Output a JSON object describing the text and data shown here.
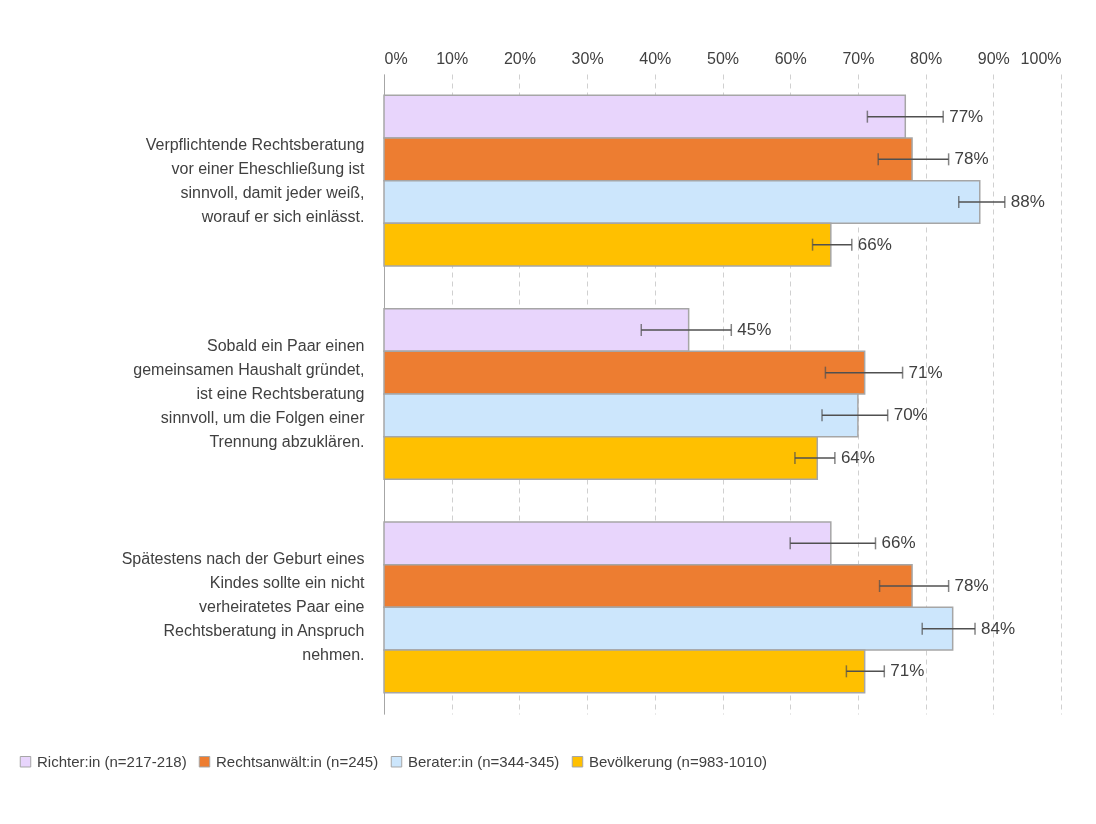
{
  "chart_data": {
    "type": "bar",
    "orientation": "horizontal",
    "categories": [
      "Verpflichtende Rechtsberatung vor einer Eheschließung ist sinnvoll, damit jeder weiß, worauf er sich einlässt.",
      "Sobald ein Paar einen gemeinsamen Haushalt gründet, ist eine Rechtsberatung sinnvoll, um die Folgen einer Trennung abzuklären.",
      "Spätestens nach der Geburt eines Kindes sollte ein nicht verheiratetes Paar eine Rechtsberatung in Anspruch nehmen."
    ],
    "series": [
      {
        "name": "Richter:in (n=217-218)",
        "color": "#e8d5fc",
        "values": [
          77,
          45,
          66
        ],
        "value_labels": [
          "77%",
          "45%",
          "66%"
        ],
        "errors": [
          [
            71.4,
            82.6
          ],
          [
            38,
            51.3
          ],
          [
            60,
            72.6
          ]
        ]
      },
      {
        "name": "Rechtsanwält:in (n=245)",
        "color": "#ed7d31",
        "values": [
          78,
          71,
          78
        ],
        "value_labels": [
          "78%",
          "71%",
          "78%"
        ],
        "errors": [
          [
            73,
            83.4
          ],
          [
            65.2,
            76.6
          ],
          [
            73.2,
            83.4
          ]
        ]
      },
      {
        "name": "Berater:in (n=344-345)",
        "color": "#cce6fc",
        "values": [
          88,
          70,
          84
        ],
        "value_labels": [
          "88%",
          "70%",
          "84%"
        ],
        "errors": [
          [
            84.9,
            91.7
          ],
          [
            64.7,
            74.4
          ],
          [
            79.5,
            87.3
          ]
        ]
      },
      {
        "name": "Bevölkerung (n=983-1010)",
        "color": "#ffc000",
        "values": [
          66,
          64,
          71
        ],
        "value_labels": [
          "66%",
          "64%",
          "71%"
        ],
        "errors": [
          [
            63.3,
            69.1
          ],
          [
            60.7,
            66.6
          ],
          [
            68.3,
            73.9
          ]
        ]
      }
    ],
    "xlim": [
      0,
      100
    ],
    "xticks": [
      {
        "value": 0,
        "label": "0%"
      },
      {
        "value": 10,
        "label": "10%"
      },
      {
        "value": 20,
        "label": "20%"
      },
      {
        "value": 30,
        "label": "30%"
      },
      {
        "value": 40,
        "label": "40%"
      },
      {
        "value": 50,
        "label": "50%"
      },
      {
        "value": 60,
        "label": "60%"
      },
      {
        "value": 70,
        "label": "70%"
      },
      {
        "value": 80,
        "label": "80%"
      },
      {
        "value": 90,
        "label": "90%"
      },
      {
        "value": 100,
        "label": "100%"
      }
    ],
    "grid": "x",
    "legend": "bottom"
  }
}
